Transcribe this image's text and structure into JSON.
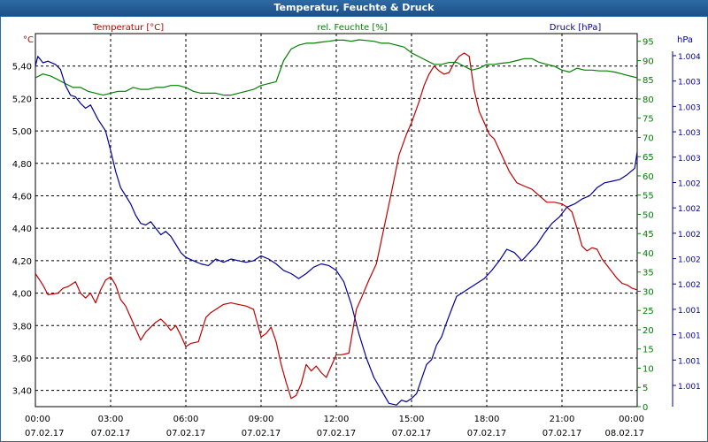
{
  "window": {
    "title": "Temperatur, Feuchte & Druck"
  },
  "colors": {
    "temperature": "#c00000",
    "humidity": "#008000",
    "pressure": "#00009c",
    "grid": "#000000",
    "titlebar": "#1d5089"
  },
  "chart_data": {
    "type": "line",
    "title": "Temperatur, Feuchte & Druck",
    "grid": true,
    "x_ticks": [
      {
        "time": "00:00",
        "date": "07.02.17"
      },
      {
        "time": "03:00",
        "date": "07.02.17"
      },
      {
        "time": "06:00",
        "date": "07.02.17"
      },
      {
        "time": "09:00",
        "date": "07.02.17"
      },
      {
        "time": "12:00",
        "date": "07.02.17"
      },
      {
        "time": "15:00",
        "date": "07.02.17"
      },
      {
        "time": "18:00",
        "date": "07.02.17"
      },
      {
        "time": "21:00",
        "date": "07.02.17"
      },
      {
        "time": "00:00",
        "date": "08.02.17"
      }
    ],
    "x_range_hours": [
      0,
      24
    ],
    "axes": {
      "temperature": {
        "label": "Temperatur [°C]",
        "unit": "°C",
        "range": [
          3.3,
          5.6
        ],
        "ticks": [
          "5,40",
          "5,20",
          "5,00",
          "4,80",
          "4,60",
          "4,40",
          "4,20",
          "4,00",
          "3,80",
          "3,60",
          "3,40"
        ],
        "tick_values": [
          5.4,
          5.2,
          5.0,
          4.8,
          4.6,
          4.4,
          4.2,
          4.0,
          3.8,
          3.6,
          3.4
        ]
      },
      "humidity": {
        "label": "rel. Feuchte [%]",
        "unit": "%",
        "range": [
          0,
          97
        ],
        "ticks": [
          "95",
          "90",
          "85",
          "80",
          "75",
          "70",
          "65",
          "60",
          "55",
          "50",
          "45",
          "40",
          "35",
          "30",
          "25",
          "20",
          "15",
          "10",
          "5",
          "0"
        ],
        "tick_values": [
          95,
          90,
          85,
          80,
          75,
          70,
          65,
          60,
          55,
          50,
          45,
          40,
          35,
          30,
          25,
          20,
          15,
          10,
          5,
          0
        ]
      },
      "pressure": {
        "label": "Druck [hPa]",
        "unit": "hPa",
        "ticks": [
          "1.004",
          "1.003",
          "1.003",
          "1.003",
          "1.003",
          "1.002",
          "1.002",
          "1.002",
          "1.002",
          "1.002",
          "1.001",
          "1.001",
          "1.001",
          "1.001"
        ]
      }
    },
    "series": [
      {
        "name": "Temperatur [°C]",
        "axis": "temperature",
        "x": [
          0,
          0.3,
          0.5,
          0.9,
          1.1,
          1.3,
          1.6,
          1.8,
          2.0,
          2.2,
          2.4,
          2.6,
          2.8,
          3.0,
          3.2,
          3.4,
          3.6,
          3.8,
          4.0,
          4.2,
          4.4,
          4.6,
          4.8,
          5.0,
          5.2,
          5.4,
          5.6,
          5.8,
          6.0,
          6.2,
          6.5,
          6.8,
          7.0,
          7.2,
          7.5,
          7.8,
          8.1,
          8.4,
          8.7,
          9.0,
          9.2,
          9.4,
          9.6,
          9.8,
          10.0,
          10.2,
          10.4,
          10.6,
          10.8,
          11.0,
          11.2,
          11.4,
          11.6,
          11.8,
          12.0,
          12.2,
          12.5,
          12.8,
          13.0,
          13.3,
          13.6,
          13.9,
          14.2,
          14.5,
          14.8,
          15.0,
          15.3,
          15.5,
          15.7,
          15.9,
          16.1,
          16.3,
          16.5,
          16.7,
          16.9,
          17.1,
          17.3,
          17.5,
          17.7,
          17.9,
          18.1,
          18.3,
          18.6,
          18.9,
          19.2,
          19.5,
          19.8,
          20.1,
          20.4,
          20.7,
          21.0,
          21.2,
          21.4,
          21.6,
          21.8,
          22.0,
          22.2,
          22.4,
          22.6,
          22.8,
          23.0,
          23.2,
          23.4,
          23.6,
          23.8,
          24.0
        ],
        "values": [
          4.12,
          4.05,
          3.99,
          4.0,
          4.03,
          4.04,
          4.07,
          4.0,
          3.97,
          4.0,
          3.94,
          4.02,
          4.08,
          4.1,
          4.05,
          3.96,
          3.92,
          3.85,
          3.78,
          3.71,
          3.76,
          3.79,
          3.82,
          3.84,
          3.81,
          3.77,
          3.8,
          3.74,
          3.67,
          3.69,
          3.7,
          3.85,
          3.88,
          3.9,
          3.93,
          3.94,
          3.93,
          3.92,
          3.9,
          3.73,
          3.75,
          3.79,
          3.7,
          3.56,
          3.45,
          3.35,
          3.37,
          3.44,
          3.56,
          3.52,
          3.55,
          3.51,
          3.48,
          3.55,
          3.62,
          3.62,
          3.63,
          3.9,
          3.97,
          4.08,
          4.18,
          4.4,
          4.62,
          4.85,
          4.98,
          5.05,
          5.18,
          5.28,
          5.35,
          5.4,
          5.37,
          5.35,
          5.36,
          5.42,
          5.46,
          5.48,
          5.46,
          5.25,
          5.12,
          5.05,
          4.98,
          4.95,
          4.85,
          4.75,
          4.68,
          4.66,
          4.64,
          4.6,
          4.56,
          4.56,
          4.55,
          4.53,
          4.5,
          4.4,
          4.29,
          4.26,
          4.28,
          4.27,
          4.21,
          4.17,
          4.13,
          4.09,
          4.06,
          4.05,
          4.03,
          4.02
        ]
      },
      {
        "name": "rel. Feuchte [%]",
        "axis": "humidity",
        "x": [
          0,
          0.3,
          0.6,
          0.9,
          1.2,
          1.5,
          1.8,
          2.1,
          2.4,
          2.7,
          3.0,
          3.3,
          3.6,
          3.9,
          4.2,
          4.5,
          4.8,
          5.1,
          5.4,
          5.7,
          6.0,
          6.3,
          6.6,
          6.9,
          7.2,
          7.5,
          7.8,
          8.1,
          8.4,
          8.7,
          9.0,
          9.3,
          9.6,
          9.9,
          10.2,
          10.5,
          10.8,
          11.1,
          11.4,
          11.7,
          12.0,
          12.3,
          12.6,
          12.9,
          13.2,
          13.5,
          13.8,
          14.1,
          14.4,
          14.7,
          15.0,
          15.3,
          15.6,
          15.9,
          16.2,
          16.5,
          16.8,
          17.1,
          17.4,
          17.7,
          18.0,
          18.3,
          18.6,
          18.9,
          19.2,
          19.5,
          19.8,
          20.1,
          20.4,
          20.7,
          21.0,
          21.3,
          21.6,
          21.9,
          22.2,
          22.5,
          22.8,
          23.1,
          23.4,
          23.7,
          24.0
        ],
        "values": [
          85.5,
          86.5,
          86,
          85,
          84,
          83,
          83,
          82,
          81.5,
          81,
          81.5,
          82,
          82,
          83,
          82.5,
          82.5,
          83,
          83,
          83.5,
          83.5,
          83,
          82,
          81.5,
          81.5,
          81.5,
          81,
          81,
          81.5,
          82,
          82.5,
          83.5,
          84,
          84.5,
          90,
          93,
          94,
          94.5,
          94.5,
          94.8,
          95,
          95.3,
          95.3,
          95,
          95.4,
          95.2,
          95,
          94.5,
          94.5,
          94,
          93.5,
          92,
          91,
          90,
          89,
          89,
          89.5,
          89.5,
          88.5,
          87.5,
          88,
          89,
          89,
          89.3,
          89.5,
          90,
          90.5,
          90.5,
          89.5,
          89,
          88.5,
          87.5,
          87,
          88,
          87.5,
          87.5,
          87.3,
          87.3,
          87,
          86.5,
          86,
          85.5
        ]
      },
      {
        "name": "Druck [hPa]",
        "axis": "pressure",
        "x": [
          0,
          0.1,
          0.3,
          0.5,
          0.8,
          1.0,
          1.2,
          1.4,
          1.6,
          1.8,
          2.0,
          2.2,
          2.5,
          2.8,
          3.0,
          3.2,
          3.4,
          3.6,
          3.8,
          4.0,
          4.2,
          4.4,
          4.6,
          4.8,
          5.0,
          5.2,
          5.4,
          5.6,
          5.8,
          6.0,
          6.3,
          6.6,
          6.9,
          7.2,
          7.5,
          7.8,
          8.1,
          8.4,
          8.7,
          9.0,
          9.3,
          9.6,
          9.9,
          10.2,
          10.5,
          10.8,
          11.1,
          11.4,
          11.7,
          12.0,
          12.3,
          12.6,
          12.9,
          13.2,
          13.5,
          13.8,
          14.1,
          14.4,
          14.6,
          14.8,
          15.0,
          15.2,
          15.4,
          15.6,
          15.8,
          16.0,
          16.2,
          16.4,
          16.6,
          16.8,
          17.0,
          17.3,
          17.6,
          17.9,
          18.2,
          18.5,
          18.8,
          19.1,
          19.4,
          19.7,
          20.0,
          20.3,
          20.6,
          20.9,
          21.2,
          21.5,
          21.8,
          22.1,
          22.4,
          22.7,
          23.0,
          23.3,
          23.6,
          23.9,
          24.0
        ],
        "values": [
          5.4,
          5.46,
          5.42,
          5.43,
          5.41,
          5.38,
          5.28,
          5.22,
          5.21,
          5.17,
          5.14,
          5.16,
          5.07,
          5.0,
          4.88,
          4.75,
          4.65,
          4.6,
          4.55,
          4.48,
          4.43,
          4.42,
          4.44,
          4.4,
          4.36,
          4.38,
          4.35,
          4.3,
          4.25,
          4.22,
          4.2,
          4.18,
          4.17,
          4.21,
          4.19,
          4.21,
          4.2,
          4.19,
          4.2,
          4.23,
          4.21,
          4.18,
          4.14,
          4.12,
          4.09,
          4.12,
          4.16,
          4.18,
          4.17,
          4.14,
          4.07,
          3.93,
          3.75,
          3.6,
          3.48,
          3.4,
          3.32,
          3.31,
          3.34,
          3.33,
          3.35,
          3.38,
          3.47,
          3.56,
          3.59,
          3.68,
          3.73,
          3.82,
          3.9,
          3.98,
          4.0,
          4.03,
          4.06,
          4.09,
          4.14,
          4.2,
          4.27,
          4.25,
          4.2,
          4.25,
          4.3,
          4.37,
          4.43,
          4.47,
          4.53,
          4.55,
          4.58,
          4.6,
          4.65,
          4.68,
          4.69,
          4.7,
          4.73,
          4.77,
          4.87
        ]
      }
    ]
  }
}
